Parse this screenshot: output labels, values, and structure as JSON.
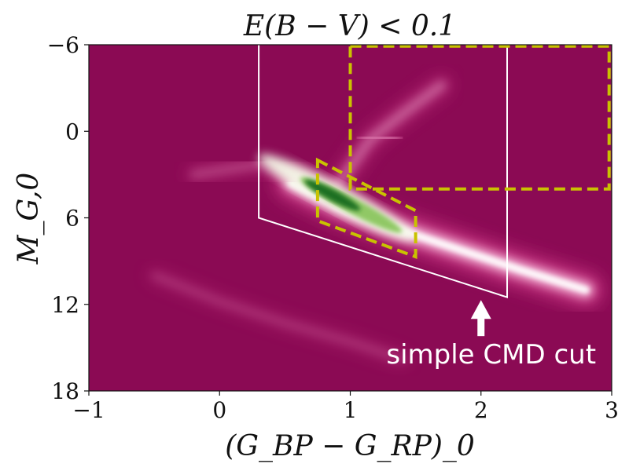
{
  "chart_data": {
    "type": "heatmap",
    "title": "E(B − V) < 0.1",
    "xlabel": "(G_BP − G_RP)_0",
    "ylabel": "M_G,0",
    "xlim": [
      -1,
      3
    ],
    "ylim": [
      18,
      -6
    ],
    "x_ticks": [
      -1,
      0,
      1,
      2,
      3
    ],
    "y_ticks": [
      -6,
      0,
      6,
      12,
      18
    ],
    "x_tick_labels": [
      "−1",
      "0",
      "1",
      "2",
      "3"
    ],
    "y_tick_labels": [
      "−6",
      "0",
      "6",
      "12",
      "18"
    ],
    "colors": {
      "background": "#8b0a54",
      "mid": "#c2317e",
      "light": "#f2b6d6",
      "peak_low": "#f4f9e8",
      "peak_mid": "#8bc65e",
      "peak_high": "#1f6f22",
      "white_cut": "#ffffff",
      "yellow_box": "#c9c200"
    },
    "density_features": [
      {
        "name": "main-sequence",
        "points": [
          [
            0.55,
            3.6
          ],
          [
            0.9,
            5.2
          ],
          [
            1.3,
            6.6
          ],
          [
            1.8,
            8.1
          ],
          [
            2.3,
            9.6
          ],
          [
            2.8,
            11.0
          ]
        ],
        "strength": 1.0
      },
      {
        "name": "red-giant-branch",
        "points": [
          [
            0.85,
            4.3
          ],
          [
            1.0,
            2.5
          ],
          [
            1.15,
            0.6
          ],
          [
            1.4,
            -1.2
          ],
          [
            1.7,
            -3.2
          ]
        ],
        "strength": 0.45
      },
      {
        "name": "red-clump",
        "points": [
          [
            1.1,
            0.4
          ],
          [
            1.35,
            0.5
          ]
        ],
        "strength": 0.5
      },
      {
        "name": "white-dwarf-sequence",
        "points": [
          [
            -0.5,
            10.0
          ],
          [
            0.0,
            11.8
          ],
          [
            0.5,
            13.3
          ],
          [
            1.0,
            14.6
          ],
          [
            1.4,
            15.8
          ]
        ],
        "strength": 0.22
      },
      {
        "name": "blue-horizontal-branch",
        "points": [
          [
            -0.2,
            3.0
          ],
          [
            0.3,
            2.3
          ],
          [
            0.55,
            3.3
          ]
        ],
        "strength": 0.3
      }
    ],
    "peak_region": {
      "center": [
        0.9,
        4.6
      ],
      "extent": [
        0.2,
        1.0
      ]
    },
    "white_cut_polygon": [
      [
        0.3,
        -6
      ],
      [
        0.3,
        6
      ],
      [
        2.2,
        11.5
      ],
      [
        2.2,
        -6
      ]
    ],
    "yellow_boxes": [
      {
        "name": "main-sequence-box",
        "points": [
          [
            0.75,
            2.0
          ],
          [
            1.5,
            5.5
          ],
          [
            1.5,
            8.7
          ],
          [
            0.75,
            6.2
          ]
        ]
      },
      {
        "name": "giant-box",
        "points": [
          [
            1.0,
            -5.9
          ],
          [
            2.98,
            -5.9
          ],
          [
            2.98,
            4.0
          ],
          [
            1.0,
            4.0
          ]
        ]
      }
    ],
    "annotation": {
      "text": "simple CMD cut",
      "arrow_x": 2.0,
      "arrow_y_from": 14.2,
      "arrow_y_to": 11.7
    }
  }
}
